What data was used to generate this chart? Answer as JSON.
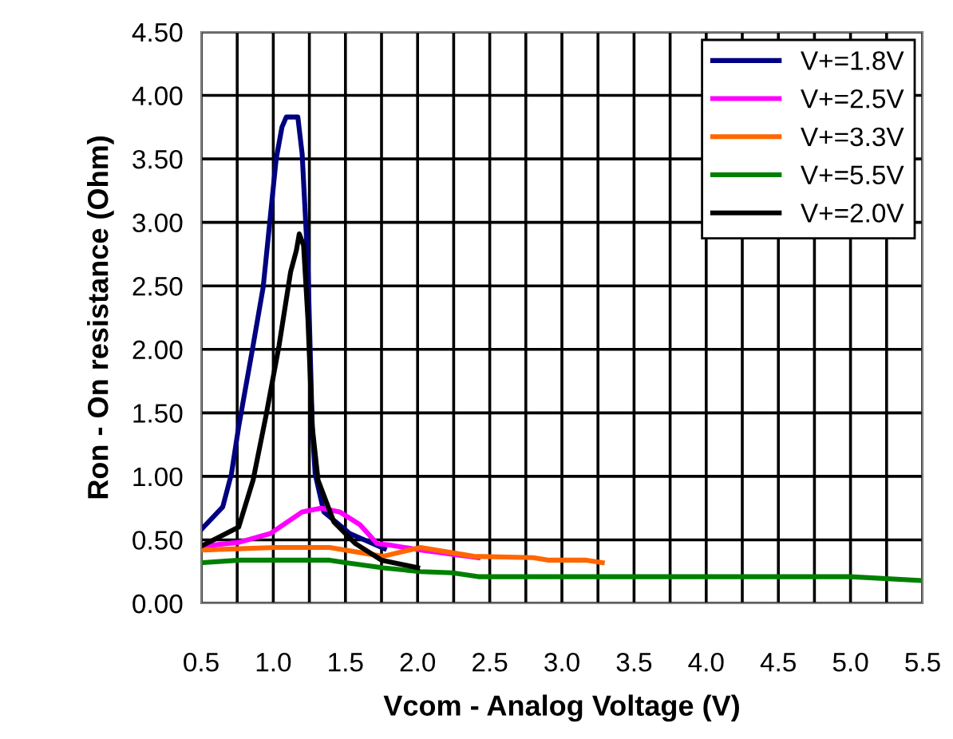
{
  "chart_data": {
    "type": "line",
    "xlabel": "Vcom - Analog Voltage (V)",
    "ylabel": "Ron - On resistance (Ohm)",
    "xlim": [
      0.5,
      5.5
    ],
    "ylim": [
      0,
      4.5
    ],
    "xticks": [
      0.5,
      {
        "value": 0.75,
        "label": null
      },
      {
        "value": 1,
        "label": "1.0"
      },
      {
        "value": 1.25,
        "label": null
      },
      1.5,
      {
        "value": 1.75,
        "label": null
      },
      {
        "value": 2,
        "label": "2.0"
      },
      {
        "value": 2.25,
        "label": null
      },
      2.5,
      {
        "value": 2.75,
        "label": null
      },
      {
        "value": 3,
        "label": "3.0"
      },
      {
        "value": 3.25,
        "label": null
      },
      3.5,
      {
        "value": 3.75,
        "label": null
      },
      {
        "value": 4,
        "label": "4.0"
      },
      {
        "value": 4.25,
        "label": null
      },
      4.5,
      {
        "value": 4.75,
        "label": null
      },
      {
        "value": 5,
        "label": "5.0"
      },
      {
        "value": 5.25,
        "label": null
      },
      5.5
    ],
    "yticks": [
      {
        "value": 0,
        "label": "0.00"
      },
      {
        "value": 0.5,
        "label": "0.50"
      },
      {
        "value": 1,
        "label": "1.00"
      },
      {
        "value": 1.5,
        "label": "1.50"
      },
      {
        "value": 2,
        "label": "2.00"
      },
      {
        "value": 2.5,
        "label": "2.50"
      },
      {
        "value": 3,
        "label": "3.00"
      },
      {
        "value": 3.5,
        "label": "3.50"
      },
      {
        "value": 4,
        "label": "4.00"
      },
      {
        "value": 4.5,
        "label": "4.50"
      }
    ],
    "grid": true,
    "legend": "top right",
    "marker": "none",
    "line_style": "solid",
    "series": [
      {
        "name": "V+=1.8V",
        "color": "#000080",
        "x": [
          0.5,
          0.65,
          0.71,
          0.76,
          0.86,
          0.93,
          1.02,
          1.06,
          1.09,
          1.17,
          1.2,
          1.24,
          1.27,
          1.29,
          1.35,
          1.53,
          1.77
        ],
        "values": [
          0.58,
          0.76,
          1.02,
          1.39,
          2.03,
          2.49,
          3.5,
          3.75,
          3.83,
          3.83,
          3.54,
          2.66,
          1.39,
          1.02,
          0.72,
          0.55,
          0.43
        ]
      },
      {
        "name": "V+=2.5V",
        "color": "#ff00ff",
        "x": [
          0.5,
          0.76,
          0.98,
          1.2,
          1.33,
          1.46,
          1.6,
          1.72,
          1.8,
          2.02,
          2.42
        ],
        "values": [
          0.45,
          0.48,
          0.55,
          0.72,
          0.75,
          0.72,
          0.62,
          0.47,
          0.46,
          0.42,
          0.36
        ]
      },
      {
        "name": "V+=3.3V",
        "color": "#ff6600",
        "x": [
          0.5,
          1.02,
          1.39,
          1.76,
          2.02,
          2.39,
          2.8,
          2.91,
          3.17,
          3.28
        ],
        "values": [
          0.42,
          0.44,
          0.44,
          0.37,
          0.44,
          0.37,
          0.36,
          0.34,
          0.34,
          0.32
        ]
      },
      {
        "name": "V+=5.5V",
        "color": "#008000",
        "x": [
          0.5,
          0.77,
          1.39,
          1.5,
          1.76,
          2.02,
          2.24,
          2.42,
          5.0,
          5.48
        ],
        "values": [
          0.32,
          0.34,
          0.34,
          0.32,
          0.28,
          0.25,
          0.24,
          0.21,
          0.21,
          0.18
        ]
      },
      {
        "name": "V+=2.0V",
        "color": "#000000",
        "x": [
          0.5,
          0.76,
          0.86,
          0.95,
          1.04,
          1.12,
          1.16,
          1.18,
          1.21,
          1.24,
          1.27,
          1.31,
          1.42,
          1.57,
          1.75,
          2.0
        ],
        "values": [
          0.45,
          0.6,
          0.97,
          1.48,
          2.03,
          2.61,
          2.78,
          2.91,
          2.82,
          2.24,
          1.39,
          0.97,
          0.64,
          0.47,
          0.34,
          0.28
        ]
      }
    ]
  }
}
